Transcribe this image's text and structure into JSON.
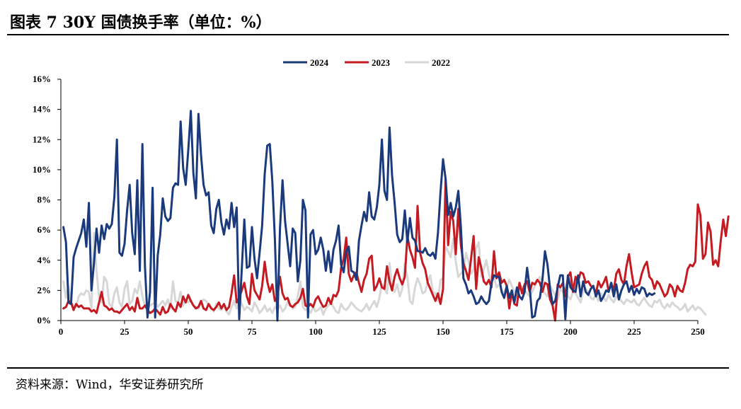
{
  "header": {
    "title": "图表 7 30Y 国债换手率（单位：%）"
  },
  "footer": {
    "source": "资料来源：Wind，华安证券研究所"
  },
  "chart_data": {
    "type": "line",
    "title": "图表 7 30Y 国债换手率（单位：%）",
    "xlabel": "",
    "ylabel": "",
    "xlim": [
      0,
      250
    ],
    "ylim": [
      0,
      16
    ],
    "x_ticks": [
      "0",
      "25",
      "50",
      "75",
      "100",
      "125",
      "150",
      "175",
      "200",
      "225",
      "250"
    ],
    "y_ticks": [
      "0%",
      "2%",
      "4%",
      "6%",
      "8%",
      "10%",
      "12%",
      "14%",
      "16%"
    ],
    "legend_position": "top-center",
    "grid": false,
    "series": [
      {
        "name": "2024",
        "color": "#1a3a7c",
        "values": [
          6.2,
          5.2,
          1.2,
          1.1,
          4.2,
          4.8,
          5.3,
          5.8,
          6.7,
          4.9,
          7.8,
          2.0,
          3.8,
          6.1,
          4.5,
          6.3,
          5.4,
          6.4,
          6.1,
          6.4,
          8.2,
          12.0,
          4.5,
          4.3,
          5.1,
          7.3,
          9.0,
          5.8,
          4.4,
          9.3,
          3.3,
          11.7,
          3.6,
          0.2,
          1.9,
          8.8,
          0.2,
          4.3,
          5.7,
          8.1,
          6.9,
          6.6,
          6.8,
          8.8,
          9.1,
          9.0,
          13.2,
          10.1,
          9.0,
          11.3,
          13.9,
          9.8,
          8.1,
          13.7,
          11.0,
          9.0,
          8.3,
          8.5,
          6.3,
          5.8,
          7.4,
          8.0,
          6.5,
          5.7,
          6.7,
          6.1,
          7.8,
          6.2,
          7.5,
          0.1,
          3.4,
          6.7,
          3.5,
          3.6,
          6.2,
          4.1,
          2.8,
          4.5,
          6.3,
          9.7,
          11.6,
          11.7,
          9.2,
          5.4,
          0.0,
          6.1,
          9.3,
          6.6,
          5.1,
          3.6,
          6.1,
          5.8,
          2.6,
          4.0,
          8.0,
          7.3,
          0.2,
          5.7,
          6.0,
          4.4,
          4.7,
          5.5,
          4.7,
          3.3,
          4.6,
          3.2,
          4.7,
          5.3,
          6.3,
          3.7,
          3.2,
          4.6,
          4.9,
          3.3,
          3.2,
          2.7,
          5.3,
          6.3,
          7.2,
          6.6,
          8.5,
          6.9,
          6.7,
          7.5,
          9.0,
          12.0,
          8.6,
          8.0,
          12.8,
          9.6,
          7.8,
          5.7,
          5.2,
          5.4,
          7.3,
          5.2,
          6.8,
          5.5,
          5.3,
          4.6,
          4.6,
          4.5,
          4.8,
          4.4,
          4.3,
          4.5,
          4.1,
          5.8,
          8.5,
          10.7,
          9.4,
          7.0,
          7.8,
          6.9,
          7.5,
          8.6,
          6.2,
          2.8,
          2.4,
          1.8,
          2.0,
          1.6,
          1.1,
          1.2,
          1.6,
          1.3,
          1.1,
          1.3,
          2.5,
          3.0,
          2.9,
          2.9,
          1.9,
          1.5,
          2.3,
          1.5,
          2.0,
          1.2,
          2.2,
          1.6,
          1.4,
          1.9,
          3.5,
          2.2,
          0.2,
          0.3,
          1.3,
          1.5,
          2.7,
          4.6,
          3.7,
          2.1,
          1.1,
          1.3,
          2.2,
          3.0,
          3.0,
          0.1,
          3.0,
          2.2,
          2.0,
          1.9,
          3.0,
          1.6,
          2.6,
          1.9,
          1.7,
          2.1,
          2.3,
          1.6,
          2.0,
          1.3,
          1.6,
          2.0,
          1.9,
          2.5,
          1.6,
          2.4,
          1.4,
          2.0,
          2.4,
          2.6,
          1.9,
          2.3,
          1.7,
          2.1,
          1.8,
          2.2,
          2.1,
          1.6,
          1.8,
          1.7,
          1.8
        ]
      },
      {
        "name": "2023",
        "color": "#c41a22",
        "values": [
          0.8,
          0.9,
          1.3,
          1.2,
          0.7,
          1.1,
          0.9,
          1.0,
          0.8,
          0.8,
          0.8,
          0.6,
          0.7,
          0.5,
          1.2,
          1.9,
          1.0,
          0.9,
          0.7,
          0.8,
          0.6,
          0.6,
          0.5,
          0.7,
          0.9,
          1.1,
          0.7,
          0.9,
          0.6,
          1.5,
          0.8,
          0.8,
          1.0,
          0.7,
          0.5,
          0.6,
          0.8,
          0.6,
          0.4,
          0.9,
          0.5,
          0.6,
          1.1,
          0.8,
          0.6,
          1.2,
          0.9,
          1.6,
          1.2,
          1.7,
          1.3,
          1.0,
          0.8,
          0.9,
          1.3,
          0.8,
          0.7,
          1.1,
          0.8,
          0.7,
          0.9,
          1.2,
          0.8,
          1.1,
          0.7,
          0.9,
          1.8,
          3.0,
          1.2,
          1.5,
          2.0,
          2.5,
          1.6,
          1.1,
          3.1,
          2.0,
          1.7,
          1.4,
          2.3,
          3.9,
          2.6,
          1.9,
          2.4,
          1.3,
          1.6,
          2.9,
          1.8,
          1.4,
          1.5,
          1.0,
          0.9,
          1.1,
          1.2,
          1.5,
          2.1,
          1.0,
          0.9,
          1.1,
          0.9,
          1.4,
          1.6,
          1.2,
          0.9,
          1.0,
          1.5,
          1.1,
          1.7,
          1.6,
          2.0,
          3.5,
          4.1,
          5.5,
          3.1,
          2.6,
          3.0,
          3.2,
          2.5,
          1.9,
          2.7,
          3.1,
          4.1,
          4.3,
          2.0,
          2.3,
          2.8,
          2.2,
          2.1,
          3.6,
          2.6,
          2.0,
          2.9,
          3.4,
          2.8,
          2.4,
          2.9,
          5.6,
          4.7,
          4.2,
          3.5,
          7.6,
          4.5,
          3.8,
          3.4,
          2.5,
          2.1,
          1.7,
          1.3,
          1.8,
          1.1,
          2.1,
          9.4,
          5.0,
          7.2,
          6.6,
          4.4,
          7.4,
          5.0,
          3.8,
          3.3,
          2.7,
          4.1,
          5.6,
          2.1,
          4.2,
          3.5,
          2.6,
          2.4,
          2.7,
          2.2,
          4.6,
          2.8,
          3.2,
          2.5,
          2.7,
          2.3,
          0.8,
          1.9,
          1.1,
          1.0,
          2.5,
          1.8,
          2.4,
          2.6,
          1.9,
          2.5,
          2.4,
          2.7,
          2.5,
          1.9,
          2.5,
          2.4,
          1.4,
          1.0,
          0.0,
          2.4,
          2.2,
          2.5,
          1.6,
          2.9,
          3.2,
          1.9,
          2.9,
          2.6,
          3.2,
          3.1,
          2.5,
          2.6,
          2.3,
          2.2,
          1.8,
          2.6,
          2.2,
          2.5,
          2.9,
          1.9,
          2.5,
          2.0,
          3.1,
          3.4,
          2.7,
          2.4,
          3.6,
          4.4,
          3.2,
          2.2,
          2.3,
          2.4,
          3.1,
          3.6,
          3.9,
          2.9,
          2.7,
          2.1,
          2.6,
          2.4,
          2.0,
          1.6,
          1.8,
          2.4,
          2.2,
          1.6,
          2.3,
          2.0,
          1.9,
          2.5,
          3.4,
          3.7,
          3.6,
          3.9,
          7.7,
          7.0,
          4.1,
          4.4,
          6.5,
          5.9,
          3.7,
          4.0,
          3.6,
          5.3,
          6.7,
          5.6,
          6.9
        ]
      },
      {
        "name": "2022",
        "color": "#d7d7d7",
        "values": [
          2.6,
          1.5,
          2.3,
          1.2,
          1.0,
          0.9,
          1.6,
          1.8,
          1.7,
          2.0,
          1.9,
          0.8,
          5.8,
          3.3,
          1.5,
          1.2,
          2.9,
          2.6,
          1.1,
          0.9,
          1.8,
          2.2,
          1.2,
          0.9,
          2.1,
          2.6,
          1.1,
          1.3,
          2.1,
          1.8,
          2.6,
          1.6,
          1.0,
          0.9,
          1.0,
          1.1,
          1.2,
          0.9,
          1.1,
          1.3,
          1.0,
          1.4,
          0.8,
          2.6,
          1.3,
          1.2,
          1.9,
          1.0,
          1.3,
          1.2,
          1.4,
          1.0,
          0.9,
          0.8,
          1.2,
          1.4,
          1.3,
          1.0,
          0.9,
          0.6,
          1.1,
          0.8,
          0.7,
          1.0,
          0.6,
          0.4,
          0.9,
          1.3,
          0.8,
          1.5,
          1.1,
          0.7,
          0.9,
          0.8,
          0.6,
          1.2,
          0.9,
          0.5,
          0.7,
          1.0,
          0.6,
          0.8,
          0.5,
          0.9,
          0.7,
          1.0,
          0.6,
          0.8,
          1.2,
          1.1,
          0.8,
          0.9,
          1.6,
          2.6,
          0.9,
          0.7,
          0.8,
          0.5,
          0.9,
          0.6,
          0.7,
          0.9,
          0.4,
          0.8,
          1.0,
          1.2,
          0.9,
          0.6,
          0.5,
          1.1,
          0.8,
          0.7,
          0.9,
          1.2,
          1.0,
          0.8,
          0.7,
          0.6,
          0.8,
          1.1,
          0.7,
          1.0,
          1.3,
          0.9,
          1.5,
          2.4,
          2.1,
          1.8,
          3.8,
          2.2,
          1.9,
          2.4,
          1.6,
          2.1,
          3.8,
          2.9,
          1.3,
          1.1,
          2.2,
          2.8,
          2.4,
          1.8,
          1.9,
          2.6,
          3.0,
          1.9,
          1.8,
          1.3,
          2.7,
          2.8,
          4.9,
          4.6,
          4.2,
          5.4,
          3.9,
          2.9,
          3.1,
          3.3,
          4.5,
          3.9,
          3.1,
          3.4,
          4.8,
          5.2,
          2.9,
          3.4,
          4.0,
          3.1,
          2.6,
          2.9,
          2.2,
          2.4,
          2.0,
          1.9,
          2.2,
          2.7,
          2.3,
          1.9,
          2.0,
          2.5,
          2.2,
          2.0,
          1.8,
          1.6,
          1.9,
          2.3,
          2.6,
          2.9,
          2.1,
          1.8,
          1.6,
          2.3,
          2.0,
          1.7,
          1.4,
          2.1,
          1.9,
          2.2,
          1.6,
          1.4,
          1.9,
          1.8,
          1.5,
          1.2,
          2.0,
          2.1,
          1.9,
          1.5,
          1.4,
          1.7,
          1.3,
          1.8,
          1.5,
          1.3,
          1.7,
          1.4,
          1.2,
          1.6,
          1.5,
          1.3,
          1.1,
          1.4,
          1.3,
          1.2,
          1.4,
          1.1,
          1.0,
          1.3,
          1.5,
          1.2,
          1.0,
          0.9,
          1.3,
          1.2,
          1.4,
          1.0,
          0.8,
          1.1,
          0.9,
          1.2,
          1.0,
          0.9,
          0.7,
          0.8,
          1.1,
          0.6,
          0.8,
          1.0,
          0.7,
          0.9,
          0.8,
          0.6,
          0.4
        ]
      }
    ]
  }
}
